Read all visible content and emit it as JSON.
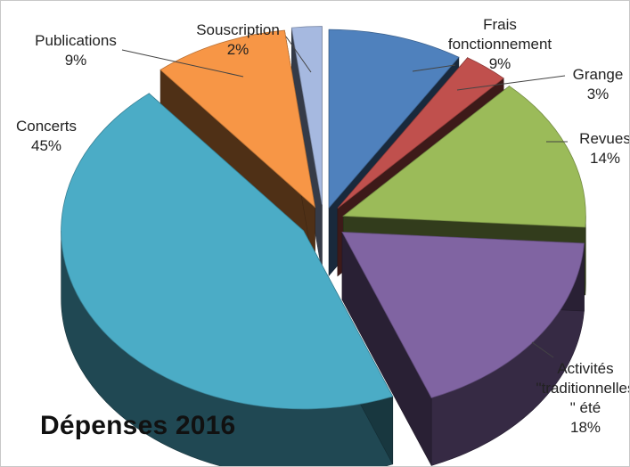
{
  "chart_data": {
    "type": "pie",
    "title": "Dépenses 2016",
    "three_d": true,
    "exploded": true,
    "legend": "none",
    "slices": [
      {
        "name": "Frais fonctionnement",
        "lines": [
          "Frais",
          "fonctionnement"
        ],
        "value": 9,
        "label": "9%",
        "color": "#4f81bd"
      },
      {
        "name": "Grange",
        "lines": [
          "Grange"
        ],
        "value": 3,
        "label": "3%",
        "color": "#c0504d"
      },
      {
        "name": "Revues",
        "lines": [
          "Revues"
        ],
        "value": 14,
        "label": "14%",
        "color": "#9bbb59"
      },
      {
        "name": "Activités \"traditionnelles\" été",
        "lines": [
          "Activités",
          "\"traditionnelles",
          "\" été"
        ],
        "value": 18,
        "label": "18%",
        "color": "#8064a2"
      },
      {
        "name": "Concerts",
        "lines": [
          "Concerts"
        ],
        "value": 45,
        "label": "45%",
        "color": "#4bacc6"
      },
      {
        "name": "Publications",
        "lines": [
          "Publications"
        ],
        "value": 9,
        "label": "9%",
        "color": "#f79646"
      },
      {
        "name": "Souscription",
        "lines": [
          "Souscription"
        ],
        "value": 2,
        "label": "2%",
        "color": "#a6b9e0"
      }
    ]
  }
}
